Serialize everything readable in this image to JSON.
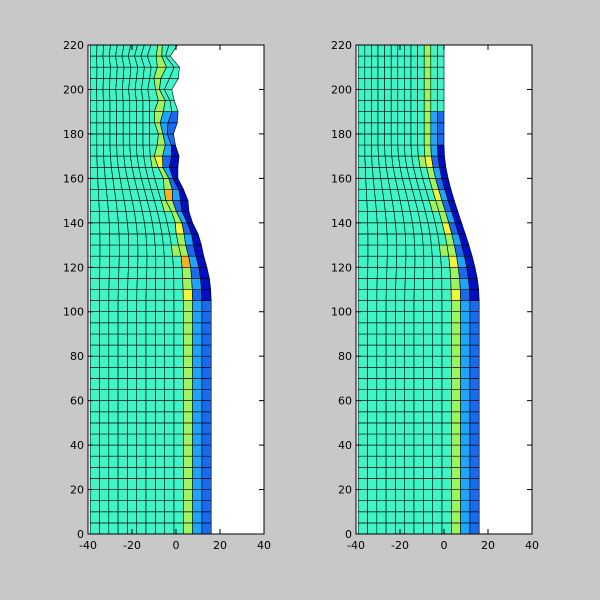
{
  "colors": {
    "figure_background": "#c8c8c8",
    "axes_background": "#ffffff",
    "mesh_line": "#000000",
    "cell_teal": "#3ff5c7",
    "cell_green": "#9ff260",
    "cell_yellow": "#f3f53b",
    "cell_orange": "#ffb020",
    "cell_lightblue": "#1ea6ff",
    "cell_blue": "#1a6af0",
    "cell_darkblue": "#0010c0"
  },
  "chart_data": [
    {
      "type": "mesh",
      "name": "",
      "xlim": [
        -40,
        40
      ],
      "ylim": [
        0,
        220
      ],
      "x_ticks": [
        -40,
        -20,
        0,
        20,
        40
      ],
      "y_ticks": [
        0,
        20,
        40,
        60,
        80,
        100,
        120,
        140,
        160,
        180,
        200,
        220
      ],
      "x_tick_labels": [
        "-40",
        "-20",
        "0",
        "20",
        "40"
      ],
      "y_tick_labels": [
        "0",
        "20",
        "40",
        "60",
        "80",
        "100",
        "120",
        "140",
        "160",
        "180",
        "200",
        "220"
      ],
      "mesh": {
        "columns": 13,
        "rows": 44,
        "x_left": -39,
        "x_right_base": 16,
        "top_right_x": 0,
        "bend_top": 175,
        "bend_bottom": 105,
        "left_curvature": 3,
        "green_column": 10,
        "blue_columns": [
          11,
          12
        ],
        "irregular_boundary": true
      }
    },
    {
      "type": "mesh",
      "name": "",
      "xlim": [
        -40,
        40
      ],
      "ylim": [
        0,
        220
      ],
      "x_ticks": [
        -40,
        -20,
        0,
        20,
        40
      ],
      "y_ticks": [
        0,
        20,
        40,
        60,
        80,
        100,
        120,
        140,
        160,
        180,
        200,
        220
      ],
      "x_tick_labels": [
        "-40",
        "-20",
        "0",
        "20",
        "40"
      ],
      "y_tick_labels": [
        "0",
        "20",
        "40",
        "60",
        "80",
        "100",
        "120",
        "140",
        "160",
        "180",
        "200",
        "220"
      ],
      "mesh": {
        "columns": 13,
        "rows": 44,
        "x_left": -39,
        "x_right_base": 16,
        "top_right_x": 0,
        "bend_top": 175,
        "bend_bottom": 105,
        "left_curvature": 3,
        "green_column": 10,
        "blue_columns": [
          11,
          12
        ],
        "irregular_boundary": false
      }
    }
  ]
}
